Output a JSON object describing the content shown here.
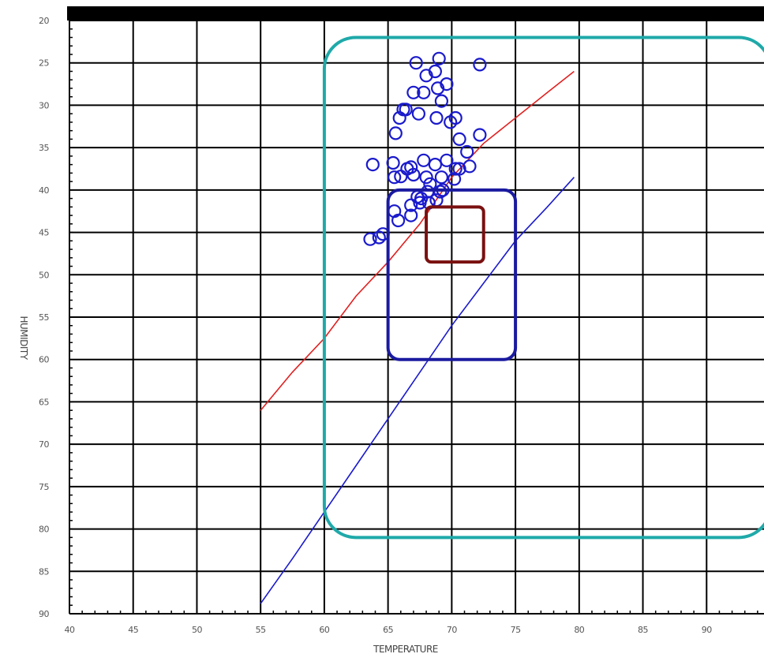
{
  "chart_data": {
    "type": "scatter",
    "title": "",
    "xlabel": "TEMPERATURE",
    "ylabel": "HUMIDITY",
    "xlim": [
      40,
      95
    ],
    "ylim": [
      90,
      20
    ],
    "y_inverted": true,
    "grid": true,
    "x_ticks": [
      40,
      45,
      50,
      55,
      60,
      65,
      70,
      75,
      80,
      85,
      90
    ],
    "y_ticks": [
      20,
      25,
      30,
      35,
      40,
      45,
      50,
      55,
      60,
      65,
      70,
      75,
      80,
      85,
      90
    ],
    "series": [
      {
        "kind": "points",
        "marker": "circle-open",
        "color": "#1a1acc",
        "points": [
          [
            67.2,
            25
          ],
          [
            68,
            26.5
          ],
          [
            69,
            24.5
          ],
          [
            68.7,
            26
          ],
          [
            67.8,
            28.5
          ],
          [
            68.9,
            28
          ],
          [
            69.6,
            27.5
          ],
          [
            67,
            28.5
          ],
          [
            69.2,
            29.5
          ],
          [
            72.2,
            25.2
          ],
          [
            66.2,
            30.5
          ],
          [
            65.9,
            31.5
          ],
          [
            66.4,
            30.5
          ],
          [
            67.4,
            31
          ],
          [
            68.8,
            31.5
          ],
          [
            70.3,
            31.5
          ],
          [
            69.9,
            32
          ],
          [
            65.6,
            33.3
          ],
          [
            70.6,
            34
          ],
          [
            72.2,
            33.5
          ],
          [
            71.2,
            35.5
          ],
          [
            65.4,
            36.8
          ],
          [
            63.8,
            37
          ],
          [
            67.8,
            36.5
          ],
          [
            68.7,
            37
          ],
          [
            69.6,
            36.5
          ],
          [
            66.5,
            37.5
          ],
          [
            70.3,
            37.5
          ],
          [
            71.4,
            37.2
          ],
          [
            66.8,
            37.3
          ],
          [
            66,
            38.4
          ],
          [
            65.5,
            38.5
          ],
          [
            67,
            38.2
          ],
          [
            68,
            38.5
          ],
          [
            69.2,
            38.5
          ],
          [
            70.2,
            38.7
          ],
          [
            70.6,
            37.5
          ],
          [
            68.3,
            39.3
          ],
          [
            69.3,
            40
          ],
          [
            68.1,
            40.2
          ],
          [
            67.6,
            41
          ],
          [
            69.1,
            40.2
          ],
          [
            67.3,
            40.8
          ],
          [
            68.8,
            41.2
          ],
          [
            68.2,
            41.5
          ],
          [
            67.5,
            41.5
          ],
          [
            66.8,
            41.8
          ],
          [
            65.5,
            42.5
          ],
          [
            66.8,
            43
          ],
          [
            65.8,
            43.6
          ],
          [
            64.6,
            45.2
          ],
          [
            63.6,
            45.8
          ],
          [
            64.3,
            45.6
          ]
        ]
      },
      {
        "kind": "line",
        "color": "#e02020",
        "points": [
          [
            55,
            66
          ],
          [
            57.5,
            61.5
          ],
          [
            60,
            57.5
          ],
          [
            62.5,
            52.5
          ],
          [
            65,
            48.5
          ],
          [
            67.5,
            44
          ],
          [
            70,
            38.5
          ],
          [
            72.5,
            34.5
          ],
          [
            75,
            31.5
          ],
          [
            77.5,
            28.5
          ],
          [
            79.6,
            26
          ]
        ]
      },
      {
        "kind": "line",
        "color": "#1a1acc",
        "points": [
          [
            55,
            88.8
          ],
          [
            57.5,
            83.5
          ],
          [
            60,
            78
          ],
          [
            62.5,
            72.5
          ],
          [
            65,
            67
          ],
          [
            67.5,
            61.5
          ],
          [
            70,
            56
          ],
          [
            72.5,
            51
          ],
          [
            75,
            46
          ],
          [
            77.5,
            42
          ],
          [
            79.6,
            38.5
          ]
        ]
      },
      {
        "kind": "region",
        "color": "#1fa9a9",
        "x": [
          60,
          95
        ],
        "y": [
          22,
          81
        ]
      },
      {
        "kind": "region",
        "color": "#1a1aa0",
        "x": [
          65,
          75
        ],
        "y": [
          40,
          60
        ]
      },
      {
        "kind": "region",
        "color": "#7a1010",
        "x": [
          68,
          72.5
        ],
        "y": [
          42,
          48.5
        ]
      }
    ]
  }
}
